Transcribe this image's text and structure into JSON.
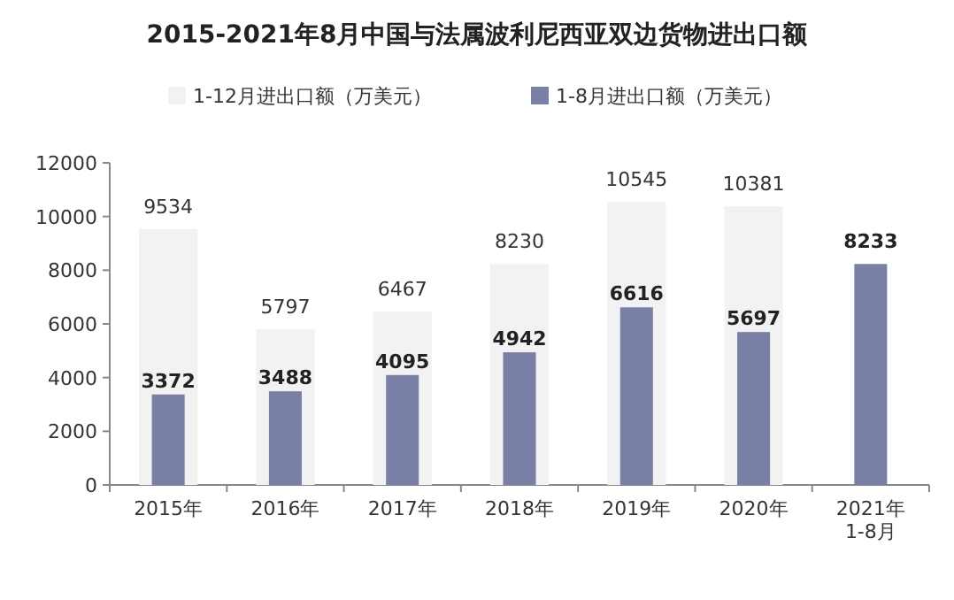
{
  "chart_data": {
    "type": "bar",
    "title": "2015-2021年8月中国与法属波利尼西亚双边货物进出口额",
    "categories": [
      "2015年",
      "2016年",
      "2017年",
      "2018年",
      "2019年",
      "2020年",
      "2021年\n1-8月"
    ],
    "series": [
      {
        "name": "1-12月进出口额（万美元）",
        "color": "#f2f2f2",
        "values": [
          9534,
          5797,
          6467,
          8230,
          10545,
          10381,
          null
        ]
      },
      {
        "name": "1-8月进出口额（万美元）",
        "color": "#7a7fa6",
        "values": [
          3372,
          3488,
          4095,
          4942,
          6616,
          5697,
          8233
        ]
      }
    ],
    "ylim": [
      0,
      12000
    ],
    "yticks": [
      0,
      2000,
      4000,
      6000,
      8000,
      10000,
      12000
    ],
    "data_labels": true,
    "legend": "top",
    "grid": false
  }
}
